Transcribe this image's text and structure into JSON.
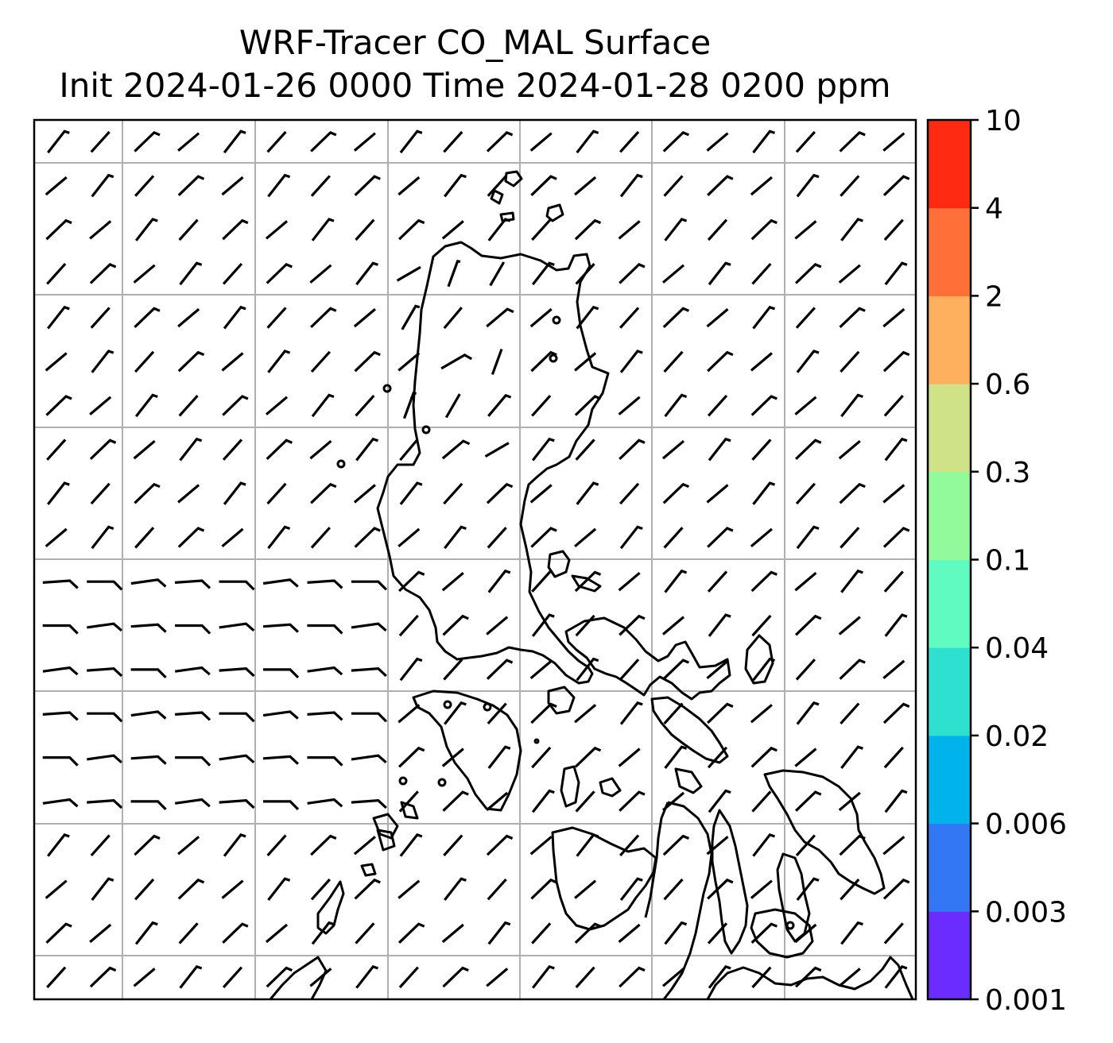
{
  "title": {
    "line1": "WRF-Tracer CO_MAL Surface",
    "line2": "Init 2024-01-26 0000 Time 2024-01-28 0200 ppm"
  },
  "colorbar": {
    "levels": [
      "0.001",
      "0.003",
      "0.006",
      "0.02",
      "0.04",
      "0.1",
      "0.3",
      "0.6",
      "2",
      "4",
      "10"
    ],
    "colors": [
      "#6a2cff",
      "#3477f5",
      "#00b3ea",
      "#2ee0d0",
      "#5ffbc0",
      "#93fa9b",
      "#cfe287",
      "#ffb05f",
      "#ff7038",
      "#ff2a12"
    ]
  },
  "map": {
    "background": "#ffffff",
    "gridlines": true,
    "grid_color": "#b0b0b0",
    "coastline_color": "#000000",
    "wind_barb_color": "#000000"
  }
}
